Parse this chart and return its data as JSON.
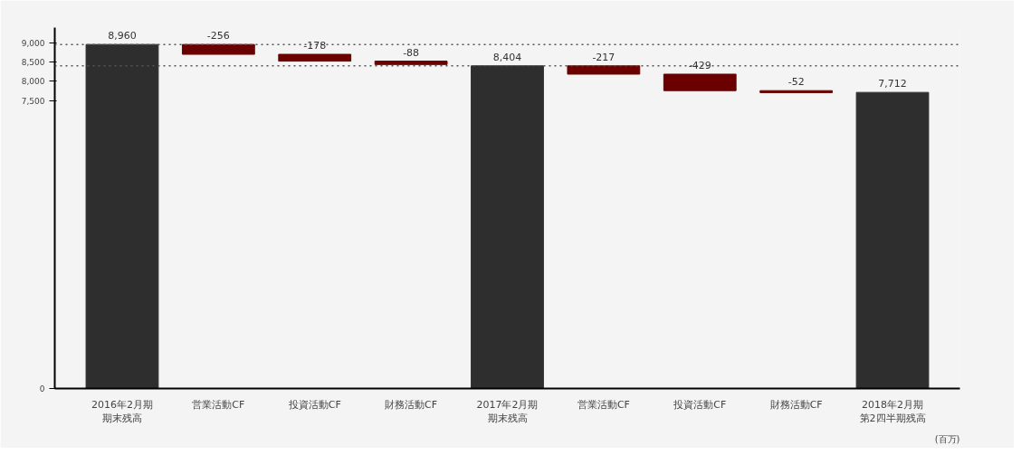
{
  "chart_data": {
    "type": "bar",
    "categories": [
      "2016年2月期期末残高",
      "営業活動CF",
      "投資活動CF",
      "財務活動CF",
      "2017年2月期期末残高",
      "営業活動CF",
      "投資活動CF",
      "財務活動CF",
      "2018年2月期第2四半期残高"
    ],
    "values": [
      8960,
      -256,
      -178,
      -88,
      8404,
      -217,
      -429,
      -52,
      7712
    ],
    "base": [
      0,
      8960,
      8704,
      8526,
      0,
      8404,
      8187,
      7758,
      0
    ],
    "colors": [
      "#2e2e2e",
      "#6b0000",
      "#6b0000",
      "#6b0000",
      "#2e2e2e",
      "#6b0000",
      "#6b0000",
      "#6b0000",
      "#2e2e2e"
    ],
    "value_labels": [
      "8,960",
      "-256",
      "-178",
      "-88",
      "8,404",
      "-217",
      "-429",
      "-52",
      "7,712"
    ],
    "ylim": [
      0,
      9400
    ],
    "yticks": [
      0,
      {
        "value": 7500,
        "label": "7,500"
      },
      {
        "value": 8000,
        "label": "8,000"
      },
      {
        "value": 8500,
        "label": "8,500"
      },
      {
        "value": 9000,
        "label": "9,000"
      }
    ],
    "ref_lines": [
      {
        "axis": "y",
        "value": 8960,
        "color": "#555555",
        "line_style": "dotted"
      },
      {
        "axis": "y",
        "value": 8404,
        "color": "#555555",
        "line_style": "dotted"
      }
    ],
    "annotations": [
      "(百万)"
    ],
    "grid": false
  }
}
